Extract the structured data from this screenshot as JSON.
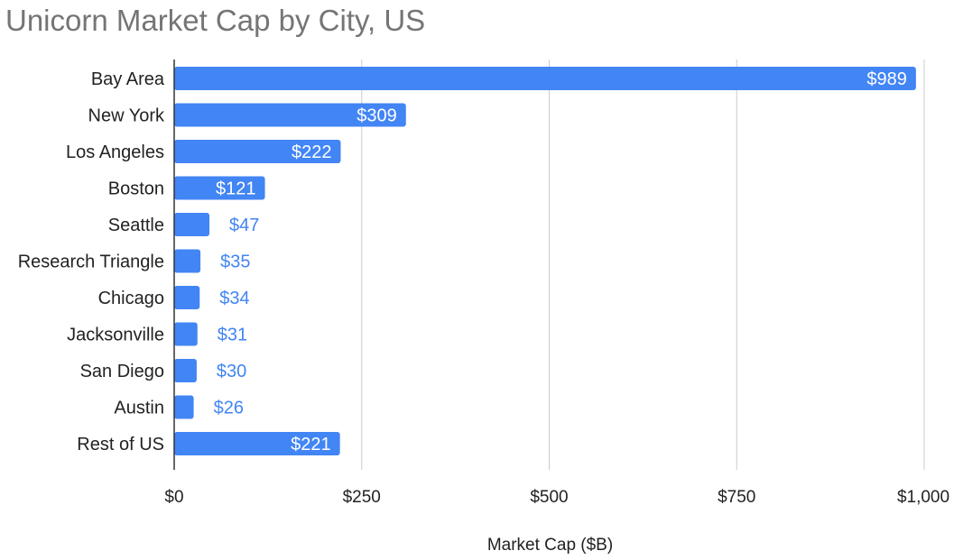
{
  "chart_data": {
    "type": "bar",
    "orientation": "horizontal",
    "title": "Unicorn Market Cap by City, US",
    "xlabel": "Market Cap ($B)",
    "ylabel": "",
    "categories": [
      "Bay Area",
      "New York",
      "Los Angeles",
      "Boston",
      "Seattle",
      "Research Triangle",
      "Chicago",
      "Jacksonville",
      "San Diego",
      "Austin",
      "Rest of US"
    ],
    "values": [
      989,
      309,
      222,
      121,
      47,
      35,
      34,
      31,
      30,
      26,
      221
    ],
    "data_labels": [
      "$989",
      "$309",
      "$222",
      "$121",
      "$47",
      "$35",
      "$34",
      "$31",
      "$30",
      "$26",
      "$221"
    ],
    "xlim": [
      0,
      1000
    ],
    "xticks": [
      0,
      250,
      500,
      750,
      1000
    ],
    "xtick_labels": [
      "$0",
      "$250",
      "$500",
      "$750",
      "$1,000"
    ],
    "grid": true,
    "legend": "none",
    "bar_color": "#4285f4",
    "inside_label_color": "#ffffff",
    "outside_label_color": "#4285f4",
    "gridline_color": "#cccccc",
    "axis_color": "#333333"
  }
}
